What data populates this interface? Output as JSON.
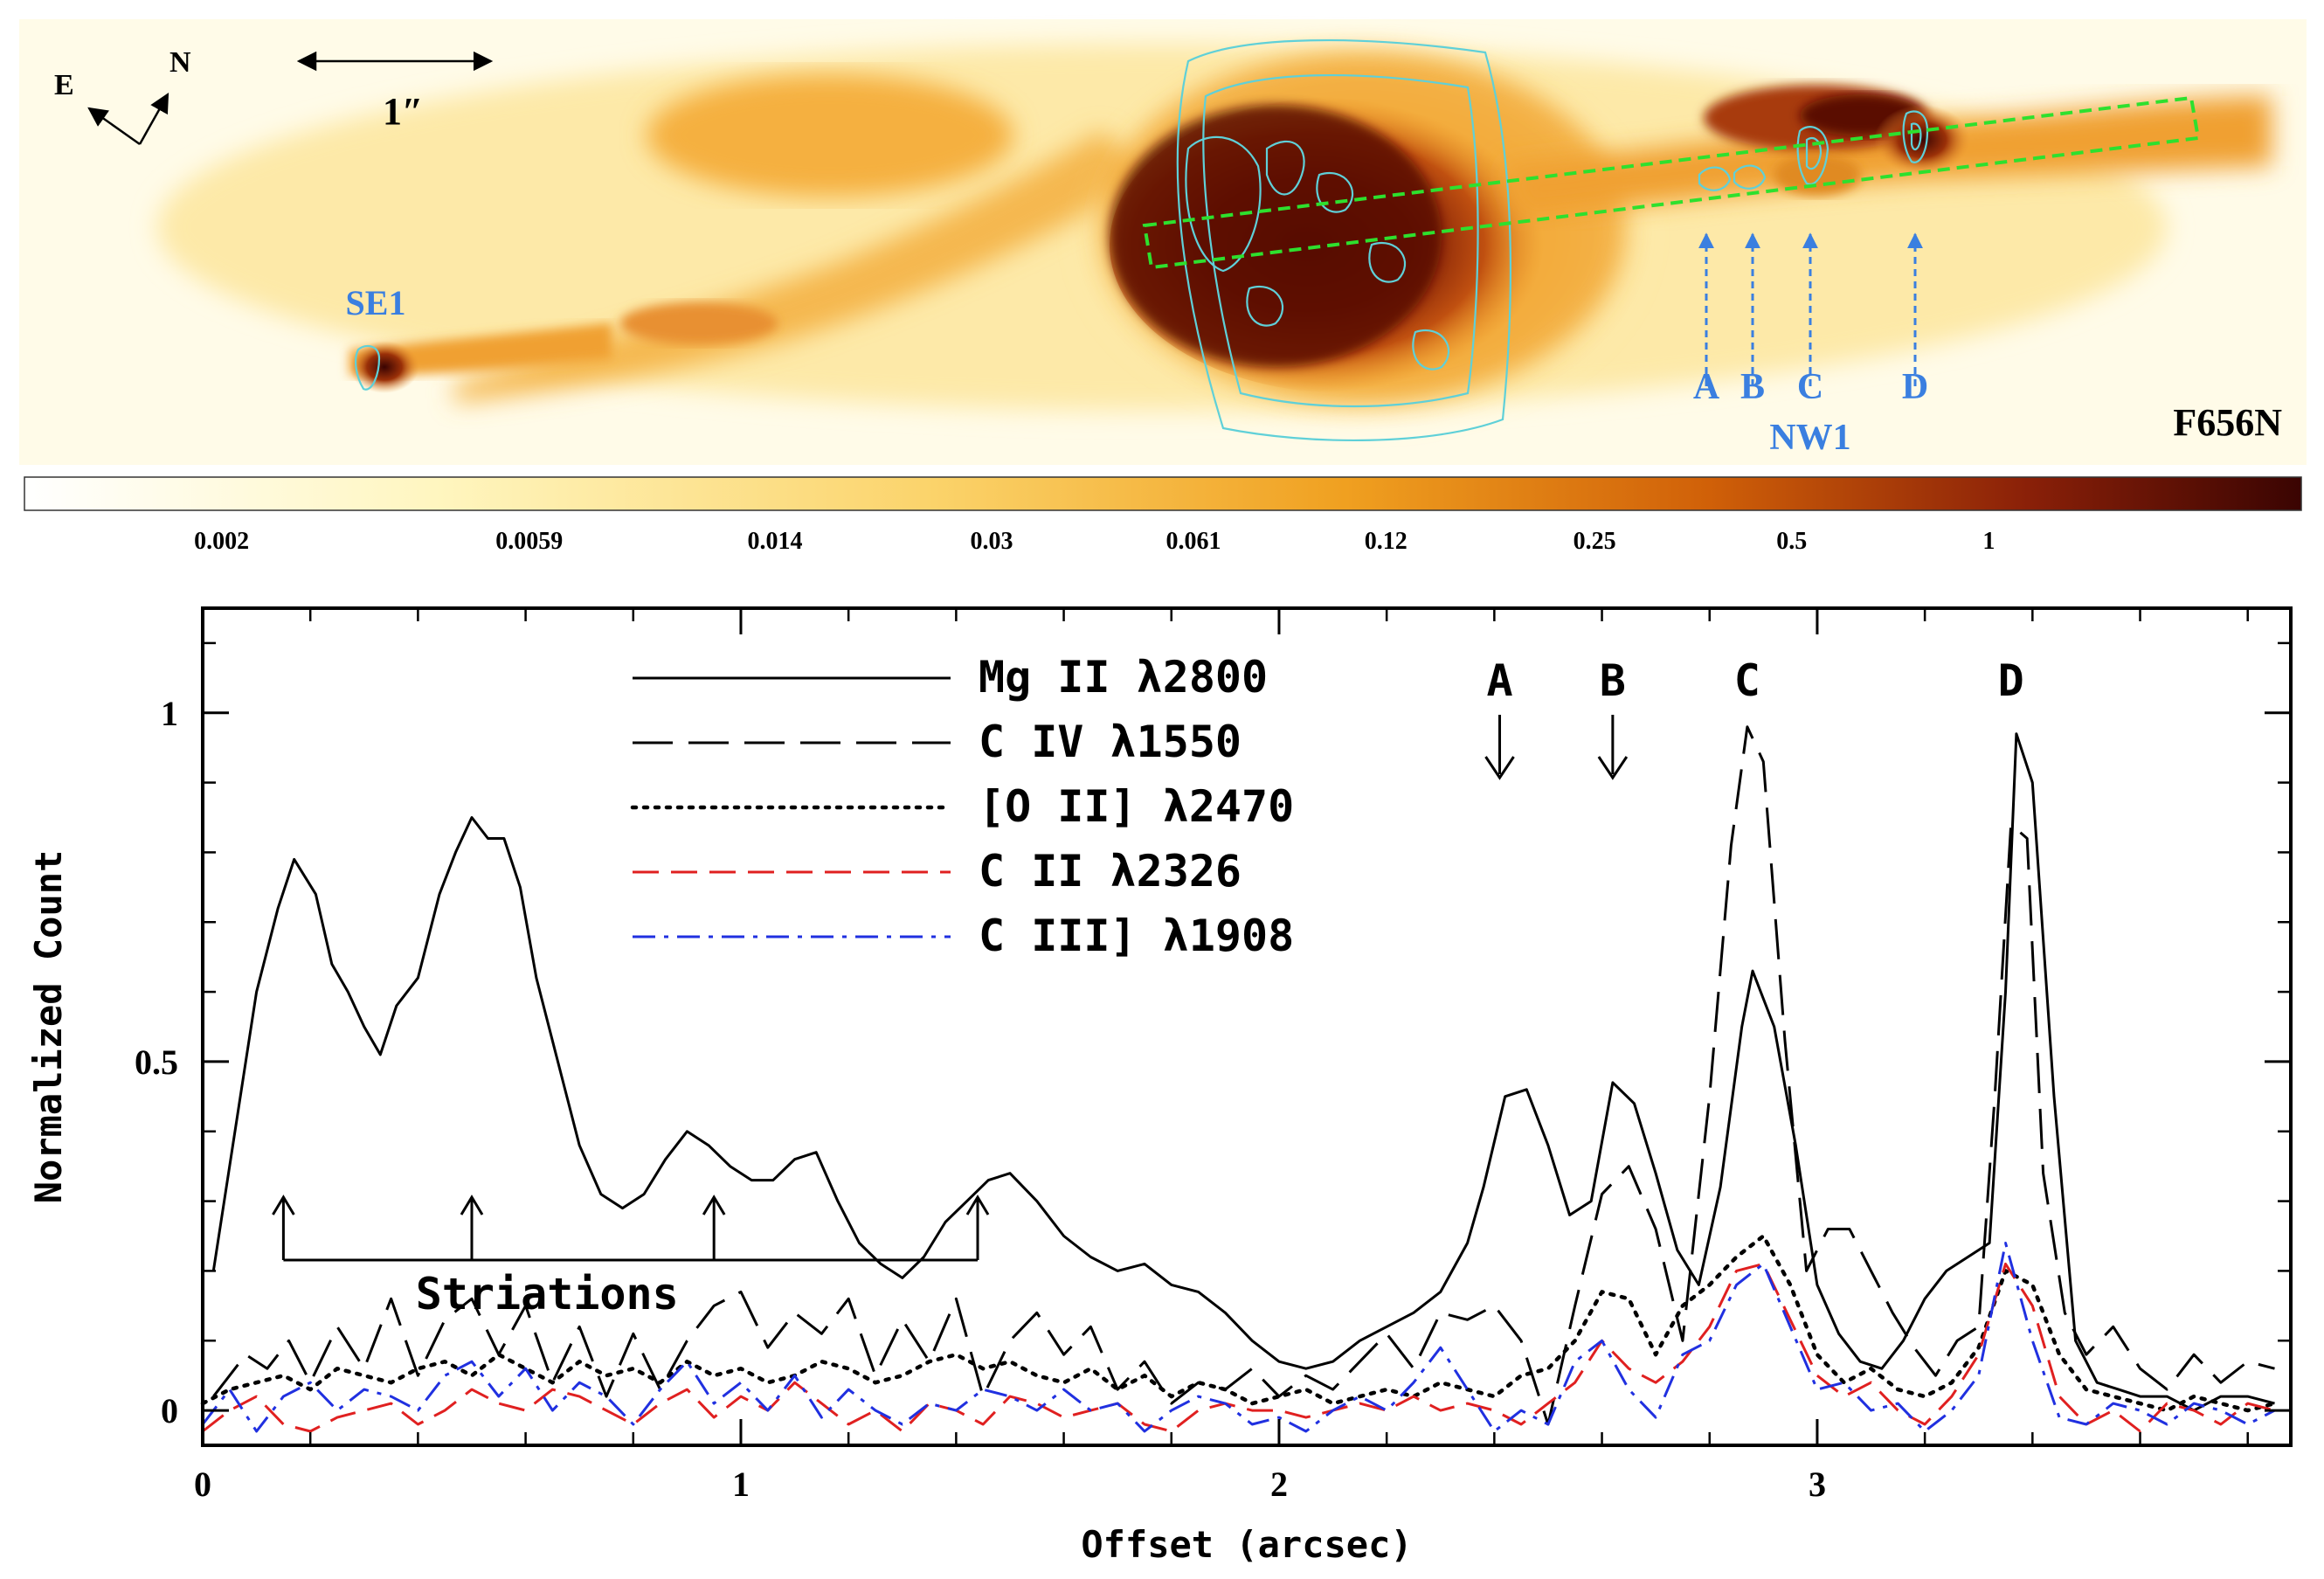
{
  "image_panel": {
    "filter_label": "F656N",
    "compass": {
      "east": "E",
      "north": "N"
    },
    "scale_bar_label": "1″",
    "knot_labels": [
      "A",
      "B",
      "C",
      "D"
    ],
    "group_labels": {
      "nw": "NW1",
      "se": "SE1"
    },
    "colorbar_ticks": [
      "0.002",
      "0.0059",
      "0.014",
      "0.03",
      "0.061",
      "0.12",
      "0.25",
      "0.5",
      "1"
    ],
    "colors": {
      "knot_label": "#3a7fe0",
      "contour": "#5fd0d8",
      "slit": "#2ee02e"
    }
  },
  "chart_data": {
    "type": "line",
    "title": "",
    "xlabel": "Offset (arcsec)",
    "ylabel": "Normalized Count",
    "xlim": [
      0,
      3.88
    ],
    "ylim": [
      -0.05,
      1.15
    ],
    "xticks": [
      0,
      1,
      2,
      3
    ],
    "yticks": [
      0,
      0.5,
      1
    ],
    "legend_position": "top-center",
    "series": [
      {
        "name": "Mg II λ2800",
        "color": "#000000",
        "dash": "solid",
        "x": [
          0.02,
          0.1,
          0.14,
          0.17,
          0.21,
          0.24,
          0.27,
          0.3,
          0.33,
          0.36,
          0.4,
          0.44,
          0.47,
          0.5,
          0.53,
          0.56,
          0.59,
          0.62,
          0.66,
          0.7,
          0.74,
          0.78,
          0.82,
          0.86,
          0.9,
          0.94,
          0.98,
          1.02,
          1.06,
          1.1,
          1.14,
          1.18,
          1.22,
          1.26,
          1.3,
          1.34,
          1.38,
          1.42,
          1.46,
          1.5,
          1.55,
          1.6,
          1.65,
          1.7,
          1.75,
          1.8,
          1.85,
          1.9,
          1.95,
          2.0,
          2.05,
          2.1,
          2.15,
          2.2,
          2.25,
          2.3,
          2.35,
          2.38,
          2.42,
          2.46,
          2.5,
          2.54,
          2.58,
          2.62,
          2.66,
          2.7,
          2.74,
          2.78,
          2.82,
          2.86,
          2.88,
          2.92,
          2.96,
          3.0,
          3.04,
          3.08,
          3.12,
          3.16,
          3.2,
          3.24,
          3.28,
          3.32,
          3.35,
          3.37,
          3.4,
          3.44,
          3.48,
          3.52,
          3.56,
          3.6,
          3.65,
          3.7,
          3.75,
          3.8,
          3.85
        ],
        "y": [
          0.2,
          0.6,
          0.72,
          0.79,
          0.74,
          0.64,
          0.6,
          0.55,
          0.51,
          0.58,
          0.62,
          0.74,
          0.8,
          0.85,
          0.82,
          0.82,
          0.75,
          0.62,
          0.5,
          0.38,
          0.31,
          0.29,
          0.31,
          0.36,
          0.4,
          0.38,
          0.35,
          0.33,
          0.33,
          0.36,
          0.37,
          0.3,
          0.24,
          0.21,
          0.19,
          0.22,
          0.27,
          0.3,
          0.33,
          0.34,
          0.3,
          0.25,
          0.22,
          0.2,
          0.21,
          0.18,
          0.17,
          0.14,
          0.1,
          0.07,
          0.06,
          0.07,
          0.1,
          0.12,
          0.14,
          0.17,
          0.24,
          0.32,
          0.45,
          0.46,
          0.38,
          0.28,
          0.3,
          0.47,
          0.44,
          0.34,
          0.23,
          0.18,
          0.32,
          0.55,
          0.63,
          0.55,
          0.38,
          0.18,
          0.11,
          0.07,
          0.06,
          0.1,
          0.16,
          0.2,
          0.22,
          0.24,
          0.6,
          0.97,
          0.9,
          0.45,
          0.1,
          0.04,
          0.03,
          0.02,
          0.02,
          0.0,
          0.02,
          0.02,
          0.01
        ]
      },
      {
        "name": "C IV λ1550",
        "color": "#000000",
        "dash": "longdash",
        "x": [
          0.02,
          0.08,
          0.12,
          0.16,
          0.2,
          0.25,
          0.3,
          0.35,
          0.4,
          0.45,
          0.5,
          0.55,
          0.6,
          0.65,
          0.7,
          0.75,
          0.8,
          0.85,
          0.9,
          0.95,
          1.0,
          1.05,
          1.1,
          1.15,
          1.2,
          1.25,
          1.3,
          1.35,
          1.4,
          1.45,
          1.5,
          1.55,
          1.6,
          1.65,
          1.7,
          1.75,
          1.8,
          1.85,
          1.9,
          1.95,
          2.0,
          2.05,
          2.1,
          2.15,
          2.2,
          2.25,
          2.3,
          2.35,
          2.4,
          2.45,
          2.5,
          2.55,
          2.6,
          2.65,
          2.7,
          2.75,
          2.8,
          2.84,
          2.87,
          2.9,
          2.94,
          2.98,
          3.02,
          3.06,
          3.1,
          3.14,
          3.18,
          3.22,
          3.26,
          3.3,
          3.33,
          3.36,
          3.39,
          3.42,
          3.46,
          3.5,
          3.55,
          3.6,
          3.65,
          3.7,
          3.75,
          3.8,
          3.85
        ],
        "y": [
          0.02,
          0.08,
          0.06,
          0.1,
          0.04,
          0.12,
          0.06,
          0.16,
          0.05,
          0.13,
          0.16,
          0.08,
          0.15,
          0.04,
          0.12,
          0.02,
          0.11,
          0.03,
          0.1,
          0.15,
          0.17,
          0.09,
          0.14,
          0.11,
          0.16,
          0.05,
          0.13,
          0.07,
          0.16,
          0.02,
          0.1,
          0.14,
          0.08,
          0.12,
          0.03,
          0.07,
          0.01,
          0.04,
          0.03,
          0.06,
          0.02,
          0.05,
          0.03,
          0.07,
          0.11,
          0.06,
          0.14,
          0.13,
          0.15,
          0.1,
          -0.02,
          0.15,
          0.31,
          0.35,
          0.26,
          0.1,
          0.45,
          0.81,
          0.98,
          0.93,
          0.53,
          0.2,
          0.26,
          0.26,
          0.2,
          0.14,
          0.09,
          0.05,
          0.1,
          0.12,
          0.45,
          0.84,
          0.82,
          0.34,
          0.14,
          0.08,
          0.12,
          0.06,
          0.03,
          0.08,
          0.04,
          0.07,
          0.06
        ]
      },
      {
        "name": "[O II] λ2470",
        "color": "#000000",
        "dash": "dotted",
        "x": [
          0.0,
          0.05,
          0.1,
          0.15,
          0.2,
          0.25,
          0.3,
          0.35,
          0.4,
          0.45,
          0.5,
          0.55,
          0.6,
          0.65,
          0.7,
          0.75,
          0.8,
          0.85,
          0.9,
          0.95,
          1.0,
          1.05,
          1.1,
          1.15,
          1.2,
          1.25,
          1.3,
          1.35,
          1.4,
          1.45,
          1.5,
          1.55,
          1.6,
          1.65,
          1.7,
          1.75,
          1.8,
          1.85,
          1.9,
          1.95,
          2.0,
          2.05,
          2.1,
          2.15,
          2.2,
          2.25,
          2.3,
          2.35,
          2.4,
          2.45,
          2.5,
          2.55,
          2.6,
          2.65,
          2.7,
          2.75,
          2.8,
          2.85,
          2.9,
          2.95,
          3.0,
          3.05,
          3.1,
          3.15,
          3.2,
          3.25,
          3.3,
          3.35,
          3.4,
          3.45,
          3.5,
          3.55,
          3.6,
          3.65,
          3.7,
          3.75,
          3.8,
          3.85
        ],
        "y": [
          0.01,
          0.03,
          0.04,
          0.05,
          0.03,
          0.06,
          0.05,
          0.04,
          0.06,
          0.07,
          0.05,
          0.08,
          0.06,
          0.04,
          0.07,
          0.05,
          0.06,
          0.04,
          0.07,
          0.05,
          0.06,
          0.04,
          0.05,
          0.07,
          0.06,
          0.04,
          0.05,
          0.07,
          0.08,
          0.06,
          0.07,
          0.05,
          0.04,
          0.06,
          0.03,
          0.05,
          0.02,
          0.04,
          0.03,
          0.01,
          0.02,
          0.03,
          0.01,
          0.02,
          0.03,
          0.02,
          0.04,
          0.03,
          0.02,
          0.05,
          0.06,
          0.1,
          0.17,
          0.16,
          0.08,
          0.15,
          0.18,
          0.22,
          0.25,
          0.18,
          0.08,
          0.04,
          0.06,
          0.03,
          0.02,
          0.04,
          0.09,
          0.2,
          0.18,
          0.08,
          0.03,
          0.02,
          0.01,
          0.0,
          0.02,
          0.01,
          0.0,
          0.01
        ]
      },
      {
        "name": "C II λ2326",
        "color": "#e02020",
        "dash": "dashed",
        "x": [
          0.0,
          0.05,
          0.1,
          0.15,
          0.2,
          0.25,
          0.3,
          0.35,
          0.4,
          0.45,
          0.5,
          0.55,
          0.6,
          0.65,
          0.7,
          0.75,
          0.8,
          0.85,
          0.9,
          0.95,
          1.0,
          1.05,
          1.1,
          1.15,
          1.2,
          1.25,
          1.3,
          1.35,
          1.4,
          1.45,
          1.5,
          1.55,
          1.6,
          1.65,
          1.7,
          1.75,
          1.8,
          1.85,
          1.9,
          1.95,
          2.0,
          2.05,
          2.1,
          2.15,
          2.2,
          2.25,
          2.3,
          2.35,
          2.4,
          2.45,
          2.5,
          2.55,
          2.6,
          2.65,
          2.7,
          2.75,
          2.8,
          2.85,
          2.9,
          2.95,
          3.0,
          3.05,
          3.1,
          3.15,
          3.2,
          3.25,
          3.3,
          3.35,
          3.4,
          3.45,
          3.5,
          3.55,
          3.6,
          3.65,
          3.7,
          3.75,
          3.8,
          3.85
        ],
        "y": [
          -0.03,
          0.0,
          0.02,
          -0.02,
          -0.03,
          -0.01,
          0.0,
          0.01,
          -0.02,
          0.0,
          0.03,
          0.01,
          0.0,
          0.03,
          0.02,
          0.0,
          -0.02,
          0.01,
          0.03,
          -0.01,
          0.02,
          0.0,
          0.04,
          0.01,
          -0.02,
          0.0,
          -0.03,
          0.01,
          0.0,
          -0.02,
          0.02,
          0.01,
          -0.01,
          0.0,
          0.01,
          -0.02,
          -0.03,
          0.0,
          0.01,
          0.0,
          0.0,
          -0.01,
          0.0,
          0.01,
          0.0,
          0.02,
          0.0,
          0.01,
          0.0,
          -0.02,
          0.01,
          0.04,
          0.1,
          0.06,
          0.04,
          0.07,
          0.12,
          0.2,
          0.21,
          0.13,
          0.05,
          0.02,
          0.04,
          0.0,
          -0.02,
          0.02,
          0.08,
          0.21,
          0.15,
          0.02,
          -0.02,
          0.0,
          -0.03,
          0.01,
          0.0,
          -0.02,
          0.01,
          0.0
        ]
      },
      {
        "name": "C III] λ1908",
        "color": "#2030e0",
        "dash": "dashdot",
        "x": [
          0.0,
          0.05,
          0.1,
          0.15,
          0.2,
          0.25,
          0.3,
          0.35,
          0.4,
          0.45,
          0.5,
          0.55,
          0.6,
          0.65,
          0.7,
          0.75,
          0.8,
          0.85,
          0.9,
          0.95,
          1.0,
          1.05,
          1.1,
          1.15,
          1.2,
          1.25,
          1.3,
          1.35,
          1.4,
          1.45,
          1.5,
          1.55,
          1.6,
          1.65,
          1.7,
          1.75,
          1.8,
          1.85,
          1.9,
          1.95,
          2.0,
          2.05,
          2.1,
          2.15,
          2.2,
          2.25,
          2.3,
          2.35,
          2.4,
          2.45,
          2.5,
          2.55,
          2.6,
          2.65,
          2.7,
          2.75,
          2.8,
          2.85,
          2.9,
          2.95,
          3.0,
          3.05,
          3.1,
          3.15,
          3.2,
          3.25,
          3.3,
          3.35,
          3.4,
          3.45,
          3.5,
          3.55,
          3.6,
          3.65,
          3.7,
          3.75,
          3.8,
          3.85
        ],
        "y": [
          -0.02,
          0.03,
          -0.03,
          0.02,
          0.04,
          0.0,
          0.03,
          0.02,
          0.0,
          0.05,
          0.07,
          0.02,
          0.06,
          0.0,
          0.04,
          0.02,
          -0.02,
          0.03,
          0.07,
          0.01,
          0.04,
          0.0,
          0.05,
          -0.01,
          0.03,
          0.0,
          -0.02,
          0.01,
          0.0,
          0.03,
          0.02,
          0.0,
          0.03,
          0.0,
          0.01,
          -0.03,
          0.0,
          0.02,
          0.01,
          -0.02,
          -0.01,
          -0.03,
          0.0,
          0.02,
          0.0,
          0.04,
          0.09,
          0.03,
          -0.03,
          0.0,
          -0.02,
          0.07,
          0.1,
          0.03,
          -0.01,
          0.08,
          0.1,
          0.18,
          0.21,
          0.12,
          0.03,
          0.04,
          0.0,
          0.01,
          -0.03,
          0.0,
          0.05,
          0.24,
          0.1,
          -0.01,
          -0.02,
          0.01,
          0.0,
          -0.02,
          0.01,
          0.0,
          -0.02,
          0.0
        ]
      }
    ],
    "annotations": {
      "striations_label": "Striations",
      "striation_x": [
        0.15,
        0.5,
        0.95,
        1.44
      ],
      "knot_markers": [
        {
          "label": "A",
          "x": 2.41,
          "arrow": true
        },
        {
          "label": "B",
          "x": 2.62,
          "arrow": true
        },
        {
          "label": "C",
          "x": 2.87,
          "arrow": false
        },
        {
          "label": "D",
          "x": 3.36,
          "arrow": false
        }
      ]
    }
  }
}
